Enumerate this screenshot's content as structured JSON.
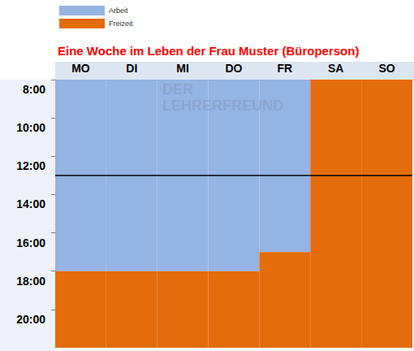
{
  "chart_data": {
    "type": "gantt",
    "title": "Eine Woche im Leben der Frau Muster (Büroperson)",
    "categories": [
      "MO",
      "DI",
      "MI",
      "DO",
      "FR",
      "SA",
      "SO"
    ],
    "series": [
      {
        "name": "Arbeit",
        "color": "#95b3e3",
        "values": [
          [
            8,
            18
          ],
          [
            8,
            18
          ],
          [
            8,
            18
          ],
          [
            8,
            18
          ],
          [
            8,
            17
          ],
          null,
          null
        ]
      },
      {
        "name": "Freizeit",
        "color": "#e46c0a",
        "values": [
          [
            18,
            22
          ],
          [
            18,
            22
          ],
          [
            18,
            22
          ],
          [
            18,
            22
          ],
          [
            17,
            22
          ],
          [
            8,
            22
          ],
          [
            8,
            22
          ]
        ]
      }
    ],
    "ylim": [
      8,
      22
    ],
    "yticks": [
      {
        "value": 8,
        "label": "8:00"
      },
      {
        "value": 10,
        "label": "10:00"
      },
      {
        "value": 12,
        "label": "12:00"
      },
      {
        "value": 14,
        "label": "14:00"
      },
      {
        "value": 16,
        "label": "16:00"
      },
      {
        "value": 18,
        "label": "18:00"
      },
      {
        "value": 20,
        "label": "20:00"
      }
    ],
    "reference_line": 13,
    "grid": false,
    "legend": "top-left",
    "watermark": [
      "DER",
      "LEHRERFREUND"
    ]
  }
}
